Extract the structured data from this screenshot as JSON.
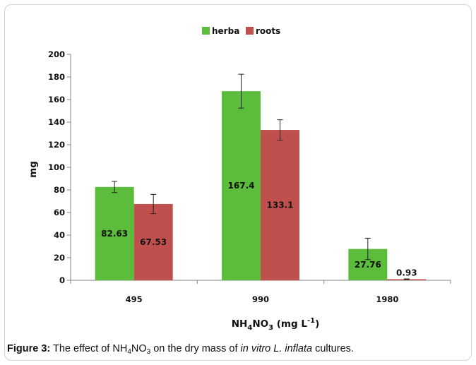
{
  "chart_data": {
    "type": "bar",
    "categories": [
      "495",
      "990",
      "1980"
    ],
    "series": [
      {
        "name": "herba",
        "color": "#5bbd3b",
        "values": [
          82.63,
          167.4,
          27.76
        ],
        "errors": [
          5,
          15,
          9.5
        ],
        "labels": [
          "82.63",
          "167.4",
          "27.76"
        ]
      },
      {
        "name": "roots",
        "color": "#c0504d",
        "values": [
          67.53,
          133.1,
          0.93
        ],
        "errors": [
          8.5,
          9,
          0.3
        ],
        "labels": [
          "67.53",
          "133.1",
          "0.93"
        ]
      }
    ],
    "ylabel": "mg",
    "xlabel_parts": {
      "a": "NH",
      "b": "4",
      "c": "NO",
      "d": "3",
      "e": " (mg L",
      "f": "-1",
      "g": ")"
    },
    "ylim": [
      0,
      200
    ],
    "yticks": [
      "0",
      "20",
      "40",
      "60",
      "80",
      "100",
      "120",
      "140",
      "160",
      "180",
      "200"
    ],
    "legend_position": "top-center",
    "grid": false
  },
  "caption": {
    "label": "Figure 3:",
    "text1": " The effect of NH",
    "sub1": "4",
    "text2": "NO",
    "sub2": "3",
    "text3": " on the dry mass of ",
    "italic": "in vitro L. inflata",
    "text4": " cultures."
  }
}
